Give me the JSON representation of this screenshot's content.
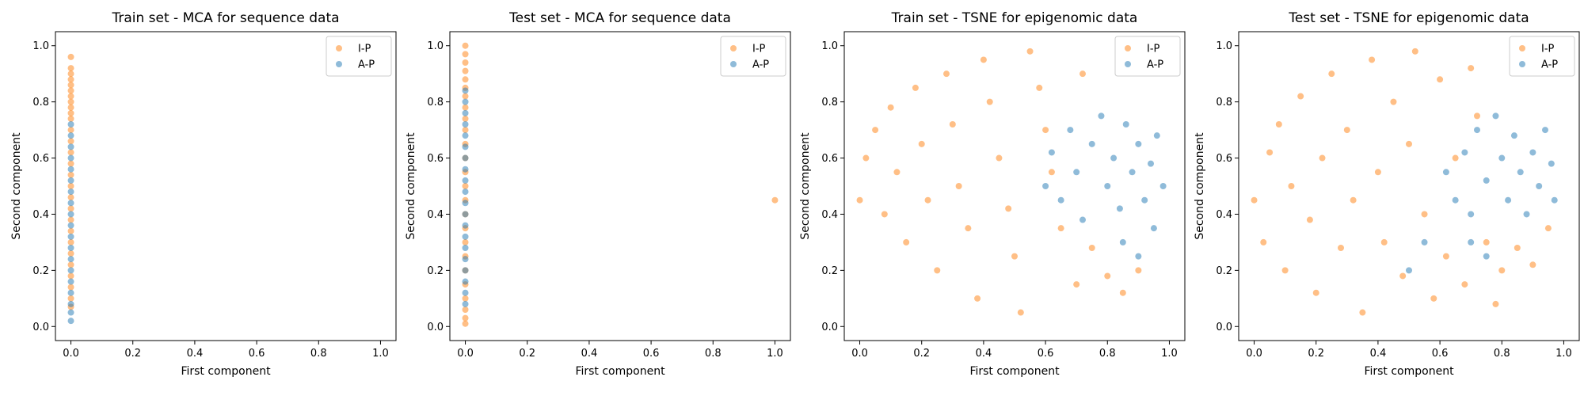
{
  "colors": {
    "I-P": "#ff7f0e",
    "A-P": "#1f77b4"
  },
  "chart_data": [
    {
      "type": "scatter",
      "title": "Train set - MCA for sequence data",
      "xlabel": "First component",
      "ylabel": "Second component",
      "xlim": [
        -0.05,
        1.05
      ],
      "ylim": [
        -0.05,
        1.05
      ],
      "xticks": [
        "0.0",
        "0.2",
        "0.4",
        "0.6",
        "0.8",
        "1.0"
      ],
      "yticks": [
        "0.0",
        "0.2",
        "0.4",
        "0.6",
        "0.8",
        "1.0"
      ],
      "legend": {
        "placement": "top-right",
        "entries": [
          "I-P",
          "A-P"
        ]
      },
      "series": [
        {
          "name": "I-P",
          "points": [
            [
              0.0,
              0.96
            ],
            [
              0.0,
              0.92
            ],
            [
              0.0,
              0.9
            ],
            [
              0.0,
              0.88
            ],
            [
              0.0,
              0.86
            ],
            [
              0.0,
              0.84
            ],
            [
              0.0,
              0.82
            ],
            [
              0.0,
              0.8
            ],
            [
              0.0,
              0.78
            ],
            [
              0.0,
              0.76
            ],
            [
              0.0,
              0.74
            ],
            [
              0.0,
              0.7
            ],
            [
              0.0,
              0.66
            ],
            [
              0.0,
              0.62
            ],
            [
              0.0,
              0.58
            ],
            [
              0.0,
              0.54
            ],
            [
              0.0,
              0.5
            ],
            [
              0.0,
              0.46
            ],
            [
              0.0,
              0.42
            ],
            [
              0.0,
              0.38
            ],
            [
              0.0,
              0.34
            ],
            [
              0.0,
              0.3
            ],
            [
              0.0,
              0.26
            ],
            [
              0.0,
              0.22
            ],
            [
              0.0,
              0.18
            ],
            [
              0.0,
              0.14
            ],
            [
              0.0,
              0.1
            ],
            [
              0.0,
              0.07
            ]
          ]
        },
        {
          "name": "A-P",
          "points": [
            [
              0.0,
              0.72
            ],
            [
              0.0,
              0.68
            ],
            [
              0.0,
              0.64
            ],
            [
              0.0,
              0.6
            ],
            [
              0.0,
              0.56
            ],
            [
              0.0,
              0.52
            ],
            [
              0.0,
              0.48
            ],
            [
              0.0,
              0.44
            ],
            [
              0.0,
              0.4
            ],
            [
              0.0,
              0.36
            ],
            [
              0.0,
              0.32
            ],
            [
              0.0,
              0.28
            ],
            [
              0.0,
              0.24
            ],
            [
              0.0,
              0.2
            ],
            [
              0.0,
              0.16
            ],
            [
              0.0,
              0.12
            ],
            [
              0.0,
              0.08
            ],
            [
              0.0,
              0.05
            ],
            [
              0.0,
              0.02
            ]
          ]
        }
      ]
    },
    {
      "type": "scatter",
      "title": "Test set - MCA for sequence data",
      "xlabel": "First component",
      "ylabel": "Second component",
      "xlim": [
        -0.05,
        1.05
      ],
      "ylim": [
        -0.05,
        1.05
      ],
      "xticks": [
        "0.0",
        "0.2",
        "0.4",
        "0.6",
        "0.8",
        "1.0"
      ],
      "yticks": [
        "0.0",
        "0.2",
        "0.4",
        "0.6",
        "0.8",
        "1.0"
      ],
      "legend": {
        "placement": "top-right",
        "entries": [
          "I-P",
          "A-P"
        ]
      },
      "series": [
        {
          "name": "I-P",
          "points": [
            [
              0.0,
              1.0
            ],
            [
              0.0,
              0.97
            ],
            [
              0.0,
              0.94
            ],
            [
              0.0,
              0.91
            ],
            [
              0.0,
              0.88
            ],
            [
              0.0,
              0.85
            ],
            [
              0.0,
              0.82
            ],
            [
              0.0,
              0.78
            ],
            [
              0.0,
              0.74
            ],
            [
              0.0,
              0.7
            ],
            [
              0.0,
              0.65
            ],
            [
              0.0,
              0.6
            ],
            [
              0.0,
              0.55
            ],
            [
              0.0,
              0.5
            ],
            [
              0.0,
              0.45
            ],
            [
              0.0,
              0.4
            ],
            [
              0.0,
              0.35
            ],
            [
              0.0,
              0.3
            ],
            [
              0.0,
              0.25
            ],
            [
              0.0,
              0.2
            ],
            [
              0.0,
              0.15
            ],
            [
              0.0,
              0.1
            ],
            [
              0.0,
              0.06
            ],
            [
              0.0,
              0.03
            ],
            [
              0.0,
              0.01
            ],
            [
              1.0,
              0.45
            ]
          ]
        },
        {
          "name": "A-P",
          "points": [
            [
              0.0,
              0.84
            ],
            [
              0.0,
              0.8
            ],
            [
              0.0,
              0.76
            ],
            [
              0.0,
              0.72
            ],
            [
              0.0,
              0.68
            ],
            [
              0.0,
              0.64
            ],
            [
              0.0,
              0.6
            ],
            [
              0.0,
              0.56
            ],
            [
              0.0,
              0.52
            ],
            [
              0.0,
              0.48
            ],
            [
              0.0,
              0.44
            ],
            [
              0.0,
              0.4
            ],
            [
              0.0,
              0.36
            ],
            [
              0.0,
              0.32
            ],
            [
              0.0,
              0.28
            ],
            [
              0.0,
              0.24
            ],
            [
              0.0,
              0.2
            ],
            [
              0.0,
              0.16
            ],
            [
              0.0,
              0.12
            ],
            [
              0.0,
              0.08
            ]
          ]
        }
      ]
    },
    {
      "type": "scatter",
      "title": "Train set - TSNE for epigenomic data",
      "xlabel": "First component",
      "ylabel": "Second component",
      "xlim": [
        -0.05,
        1.05
      ],
      "ylim": [
        -0.05,
        1.05
      ],
      "xticks": [
        "0.0",
        "0.2",
        "0.4",
        "0.6",
        "0.8",
        "1.0"
      ],
      "yticks": [
        "0.0",
        "0.2",
        "0.4",
        "0.6",
        "0.8",
        "1.0"
      ],
      "legend": {
        "placement": "top-right",
        "entries": [
          "I-P",
          "A-P"
        ]
      },
      "series": [
        {
          "name": "I-P",
          "points": [
            [
              0.0,
              0.45
            ],
            [
              0.02,
              0.6
            ],
            [
              0.05,
              0.7
            ],
            [
              0.08,
              0.4
            ],
            [
              0.1,
              0.78
            ],
            [
              0.12,
              0.55
            ],
            [
              0.15,
              0.3
            ],
            [
              0.18,
              0.85
            ],
            [
              0.2,
              0.65
            ],
            [
              0.22,
              0.45
            ],
            [
              0.25,
              0.2
            ],
            [
              0.28,
              0.9
            ],
            [
              0.3,
              0.72
            ],
            [
              0.32,
              0.5
            ],
            [
              0.35,
              0.35
            ],
            [
              0.38,
              0.1
            ],
            [
              0.4,
              0.95
            ],
            [
              0.42,
              0.8
            ],
            [
              0.45,
              0.6
            ],
            [
              0.48,
              0.42
            ],
            [
              0.5,
              0.25
            ],
            [
              0.52,
              0.05
            ],
            [
              0.55,
              0.98
            ],
            [
              0.58,
              0.85
            ],
            [
              0.6,
              0.7
            ],
            [
              0.62,
              0.55
            ],
            [
              0.65,
              0.35
            ],
            [
              0.7,
              0.15
            ],
            [
              0.72,
              0.9
            ],
            [
              0.75,
              0.28
            ],
            [
              0.8,
              0.18
            ],
            [
              0.85,
              0.12
            ],
            [
              0.9,
              0.2
            ]
          ]
        },
        {
          "name": "A-P",
          "points": [
            [
              0.6,
              0.5
            ],
            [
              0.62,
              0.62
            ],
            [
              0.65,
              0.45
            ],
            [
              0.68,
              0.7
            ],
            [
              0.7,
              0.55
            ],
            [
              0.72,
              0.38
            ],
            [
              0.75,
              0.65
            ],
            [
              0.78,
              0.75
            ],
            [
              0.8,
              0.5
            ],
            [
              0.82,
              0.6
            ],
            [
              0.84,
              0.42
            ],
            [
              0.86,
              0.72
            ],
            [
              0.88,
              0.55
            ],
            [
              0.9,
              0.65
            ],
            [
              0.92,
              0.45
            ],
            [
              0.94,
              0.58
            ],
            [
              0.96,
              0.68
            ],
            [
              0.98,
              0.5
            ],
            [
              0.85,
              0.3
            ],
            [
              0.9,
              0.25
            ],
            [
              0.95,
              0.35
            ]
          ]
        }
      ]
    },
    {
      "type": "scatter",
      "title": "Test set - TSNE for epigenomic data",
      "xlabel": "First component",
      "ylabel": "Second component",
      "xlim": [
        -0.05,
        1.05
      ],
      "ylim": [
        -0.05,
        1.05
      ],
      "xticks": [
        "0.0",
        "0.2",
        "0.4",
        "0.6",
        "0.8",
        "1.0"
      ],
      "yticks": [
        "0.0",
        "0.2",
        "0.4",
        "0.6",
        "0.8",
        "1.0"
      ],
      "legend": {
        "placement": "top-right",
        "entries": [
          "I-P",
          "A-P"
        ]
      },
      "series": [
        {
          "name": "I-P",
          "points": [
            [
              0.0,
              0.45
            ],
            [
              0.03,
              0.3
            ],
            [
              0.05,
              0.62
            ],
            [
              0.08,
              0.72
            ],
            [
              0.1,
              0.2
            ],
            [
              0.12,
              0.5
            ],
            [
              0.15,
              0.82
            ],
            [
              0.18,
              0.38
            ],
            [
              0.2,
              0.12
            ],
            [
              0.22,
              0.6
            ],
            [
              0.25,
              0.9
            ],
            [
              0.28,
              0.28
            ],
            [
              0.3,
              0.7
            ],
            [
              0.32,
              0.45
            ],
            [
              0.35,
              0.05
            ],
            [
              0.38,
              0.95
            ],
            [
              0.4,
              0.55
            ],
            [
              0.42,
              0.3
            ],
            [
              0.45,
              0.8
            ],
            [
              0.48,
              0.18
            ],
            [
              0.5,
              0.65
            ],
            [
              0.52,
              0.98
            ],
            [
              0.55,
              0.4
            ],
            [
              0.58,
              0.1
            ],
            [
              0.6,
              0.88
            ],
            [
              0.62,
              0.25
            ],
            [
              0.65,
              0.6
            ],
            [
              0.68,
              0.15
            ],
            [
              0.7,
              0.92
            ],
            [
              0.75,
              0.3
            ],
            [
              0.8,
              0.2
            ],
            [
              0.85,
              0.28
            ],
            [
              0.9,
              0.22
            ],
            [
              0.95,
              0.35
            ],
            [
              0.72,
              0.75
            ],
            [
              0.78,
              0.08
            ]
          ]
        },
        {
          "name": "A-P",
          "points": [
            [
              0.62,
              0.55
            ],
            [
              0.65,
              0.45
            ],
            [
              0.68,
              0.62
            ],
            [
              0.7,
              0.4
            ],
            [
              0.72,
              0.7
            ],
            [
              0.75,
              0.52
            ],
            [
              0.78,
              0.75
            ],
            [
              0.8,
              0.6
            ],
            [
              0.82,
              0.45
            ],
            [
              0.84,
              0.68
            ],
            [
              0.86,
              0.55
            ],
            [
              0.88,
              0.4
            ],
            [
              0.9,
              0.62
            ],
            [
              0.92,
              0.5
            ],
            [
              0.94,
              0.7
            ],
            [
              0.96,
              0.58
            ],
            [
              0.97,
              0.45
            ],
            [
              0.7,
              0.3
            ],
            [
              0.75,
              0.25
            ],
            [
              0.55,
              0.3
            ],
            [
              0.5,
              0.2
            ]
          ]
        }
      ]
    }
  ]
}
